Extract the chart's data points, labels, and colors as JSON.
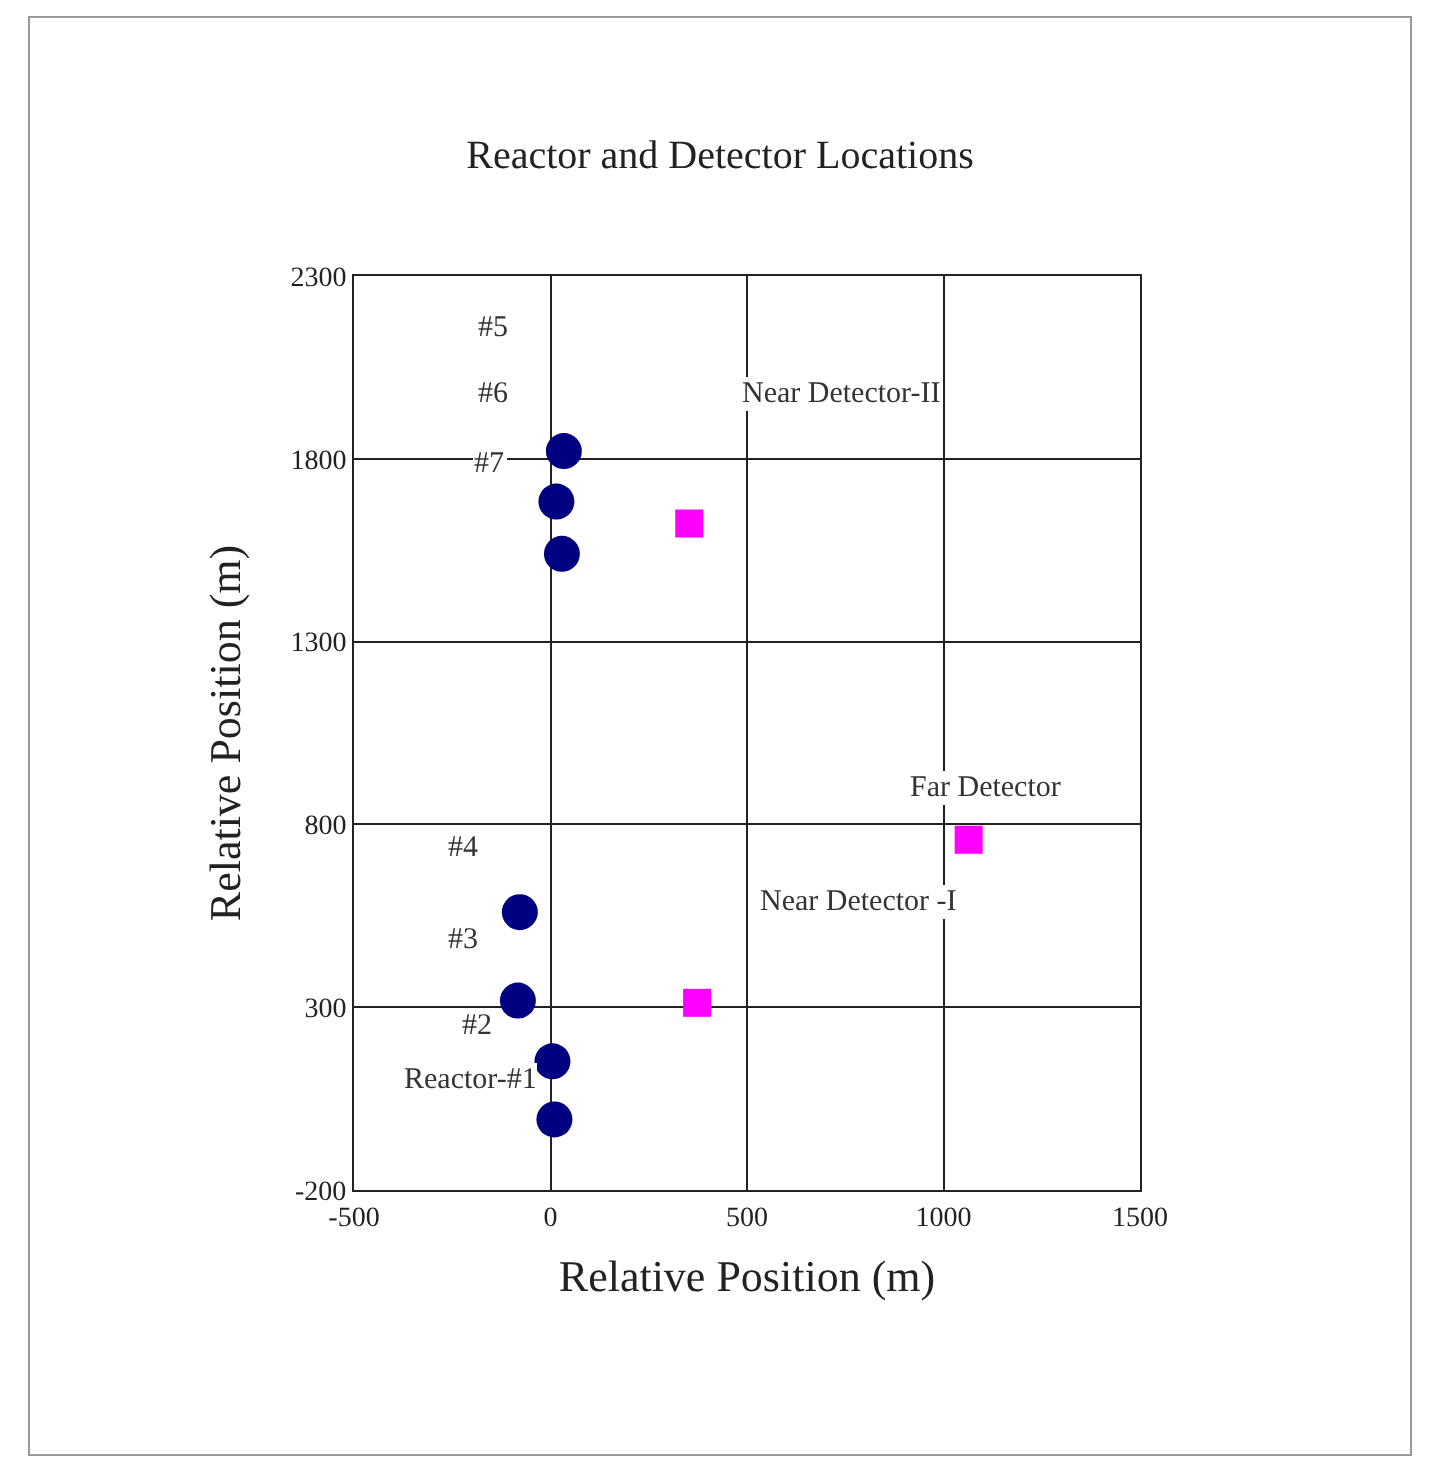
{
  "chart_data": {
    "type": "scatter",
    "title": "Reactor and Detector Locations",
    "xlabel": "Relative Position (m)",
    "ylabel": "Relative Position (m)",
    "series": [
      {
        "color": "#000080",
        "marker": "circle",
        "x": [
          10,
          5,
          -83,
          -78,
          29,
          15,
          34
        ],
        "values": [
          -7,
          152,
          318,
          560,
          1540,
          1683,
          1821
        ]
      },
      {
        "color": "#ff00ff",
        "marker": "square",
        "x": [
          373,
          1064,
          353
        ],
        "values": [
          312,
          758,
          1623
        ]
      }
    ],
    "xlim": [
      -500,
      1500
    ],
    "xticks": [
      -500,
      0,
      500,
      1000,
      1500
    ],
    "ylim": [
      -200,
      2300
    ],
    "yticks": [
      -200,
      300,
      800,
      1300,
      1800,
      2300
    ],
    "grid": true,
    "annotations": [
      "Reactor-#1",
      "#2",
      "#3",
      "#4",
      "#5",
      "#6",
      "#7",
      "Near Detector -I",
      "Far Detector",
      "Near Detector-II"
    ]
  }
}
